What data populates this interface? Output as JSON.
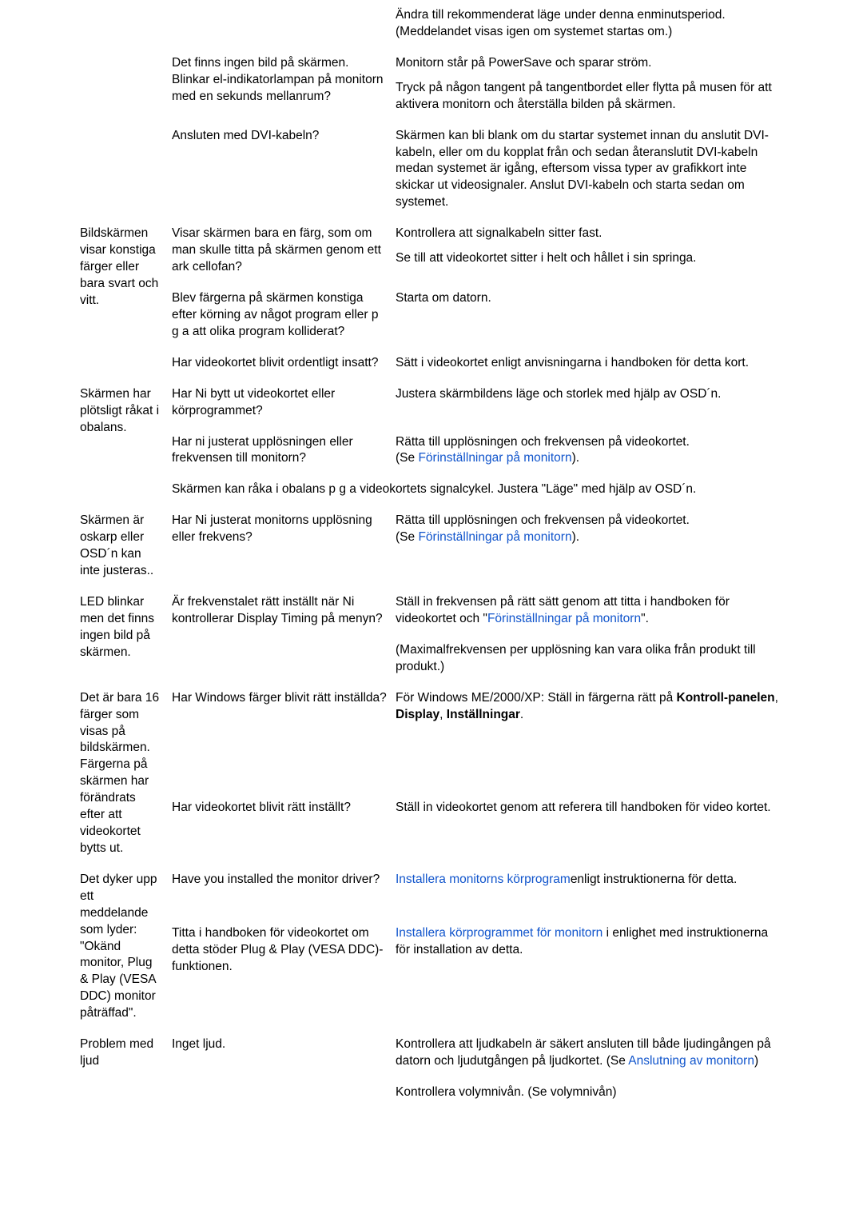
{
  "rows": [
    {
      "col1": "",
      "col2": "",
      "col3": "Ändra till rekommenderat läge under denna enminutsperiod. (Meddelandet visas igen om systemet startas om.)"
    },
    {
      "col1": "",
      "col2": "Det finns ingen bild på skärmen. Blinkar el-indikatorlampan på monitorn med en sekunds mellanrum?",
      "col3_parts": [
        {
          "text": "Monitorn står på PowerSave och sparar ström.",
          "class": "block"
        },
        {
          "text": "Tryck på någon tangent på tangentbordet eller flytta på musen för att aktivera monitorn och återställa bilden på skärmen.",
          "class": "block"
        }
      ]
    },
    {
      "col1": "",
      "col2": "Ansluten med DVI-kabeln?",
      "col3": "Skärmen kan bli blank om du startar systemet innan du anslutit DVI-kabeln, eller om du kopplat från och sedan återanslutit DVI-kabeln medan systemet är igång, eftersom vissa typer av grafikkort inte skickar ut videosignaler. Anslut DVI-kabeln och starta sedan om systemet."
    },
    {
      "col1": "Bildskärmen visar konstiga färger eller bara svart och vitt.",
      "col2": "Visar skärmen bara en färg, som om man skulle titta på skärmen genom ett ark cellofan?",
      "col3_parts": [
        {
          "text": "Kontrollera att signalkabeln sitter fast.",
          "class": "block"
        },
        {
          "text": "Se till att videokortet sitter i helt och hållet i sin springa.",
          "class": "block"
        }
      ]
    },
    {
      "col1": "",
      "col2": "Blev färgerna på skärmen konstiga efter körning av något program eller p g a att olika program kolliderat?",
      "col3": "Starta om datorn."
    },
    {
      "col1": "",
      "col2": "Har videokortet blivit ordentligt insatt?",
      "col3": "Sätt i videokortet enligt anvisningarna i handboken för detta kort."
    },
    {
      "col1": "Skärmen har plötsligt råkat i obalans.",
      "col2": "Har Ni bytt ut videokortet eller körprogrammet?",
      "col3": "Justera skärmbildens läge och storlek med hjälp av OSD´n."
    },
    {
      "col1": "",
      "col2": "Har ni justerat upplösningen eller frekvensen till monitorn?",
      "col3_html": "Rätta till upplösningen och frekvensen på videokortet.<br>(Se <span class=\"link\">Förinställningar på monitorn</span>)."
    },
    {
      "col1": "",
      "col23": "Skärmen kan råka i obalans p g a videokortets signalcykel. Justera \"Läge\" med hjälp av OSD´n."
    },
    {
      "col1": "Skärmen är oskarp eller OSD´n kan inte justeras..",
      "col2": "Har Ni justerat monitorns upplösning eller frekvens?",
      "col3_html": "Rätta till upplösningen och frekvensen på videokortet.<br>(Se <span class=\"link\">Förinställningar på monitorn</span>)."
    },
    {
      "col1": "LED blinkar men det finns ingen bild på skärmen.",
      "col2": "Är frekvenstalet rätt inställt när Ni kontrollerar Display Timing på menyn?",
      "col3_html": "Ställ in frekvensen på rätt sätt genom att titta i handboken för videokortet och \"<span class=\"link\">Förinställningar på monitorn</span>\"."
    },
    {
      "col1": "",
      "col2": "",
      "col3": "(Maximalfrekvensen per upplösning kan vara olika från produkt till produkt.)"
    },
    {
      "col1": "Det är bara 16 färger som visas på bildskärmen. Färgerna på skärmen har förändrats efter att videokortet bytts ut.",
      "col2": "Har Windows färger blivit rätt inställda?",
      "col3_html": "För Windows ME/2000/XP: Ställ in färgerna rätt på <b>Kontroll-panelen</b>, <b>Display</b>, <b>Inställningar</b>."
    },
    {
      "col1": "",
      "col2": "Har videokortet blivit rätt inställt?",
      "col3": "Ställ in videokortet genom att referera till handboken för video kortet."
    },
    {
      "col1": "Det dyker upp ett meddelande som lyder: \"Okänd monitor, Plug & Play (VESA DDC) monitor påträffad\".",
      "col2": "Have you installed the monitor driver?",
      "col3_html": "<span class=\"link\">Installera monitorns körprogram</span>enligt instruktionerna för detta."
    },
    {
      "col1": "",
      "col2": "Titta i handboken för videokortet om detta stöder Plug & Play (VESA DDC)-funktionen.",
      "col3_html": "<span class=\"link\">Installera körprogrammet för monitorn</span> i enlighet med instruktionerna för installation av detta."
    },
    {
      "col1": "Problem med ljud",
      "col2": "Inget ljud.",
      "col3_html": "Kontrollera att ljudkabeln är säkert ansluten till både ljudingången på datorn och ljudutgången på ljudkortet. (Se <span class=\"link\">Anslutning av monitorn</span>)"
    },
    {
      "col1": "",
      "col2": "",
      "col3": "Kontrollera volymnivån. (Se volymnivån)"
    }
  ]
}
